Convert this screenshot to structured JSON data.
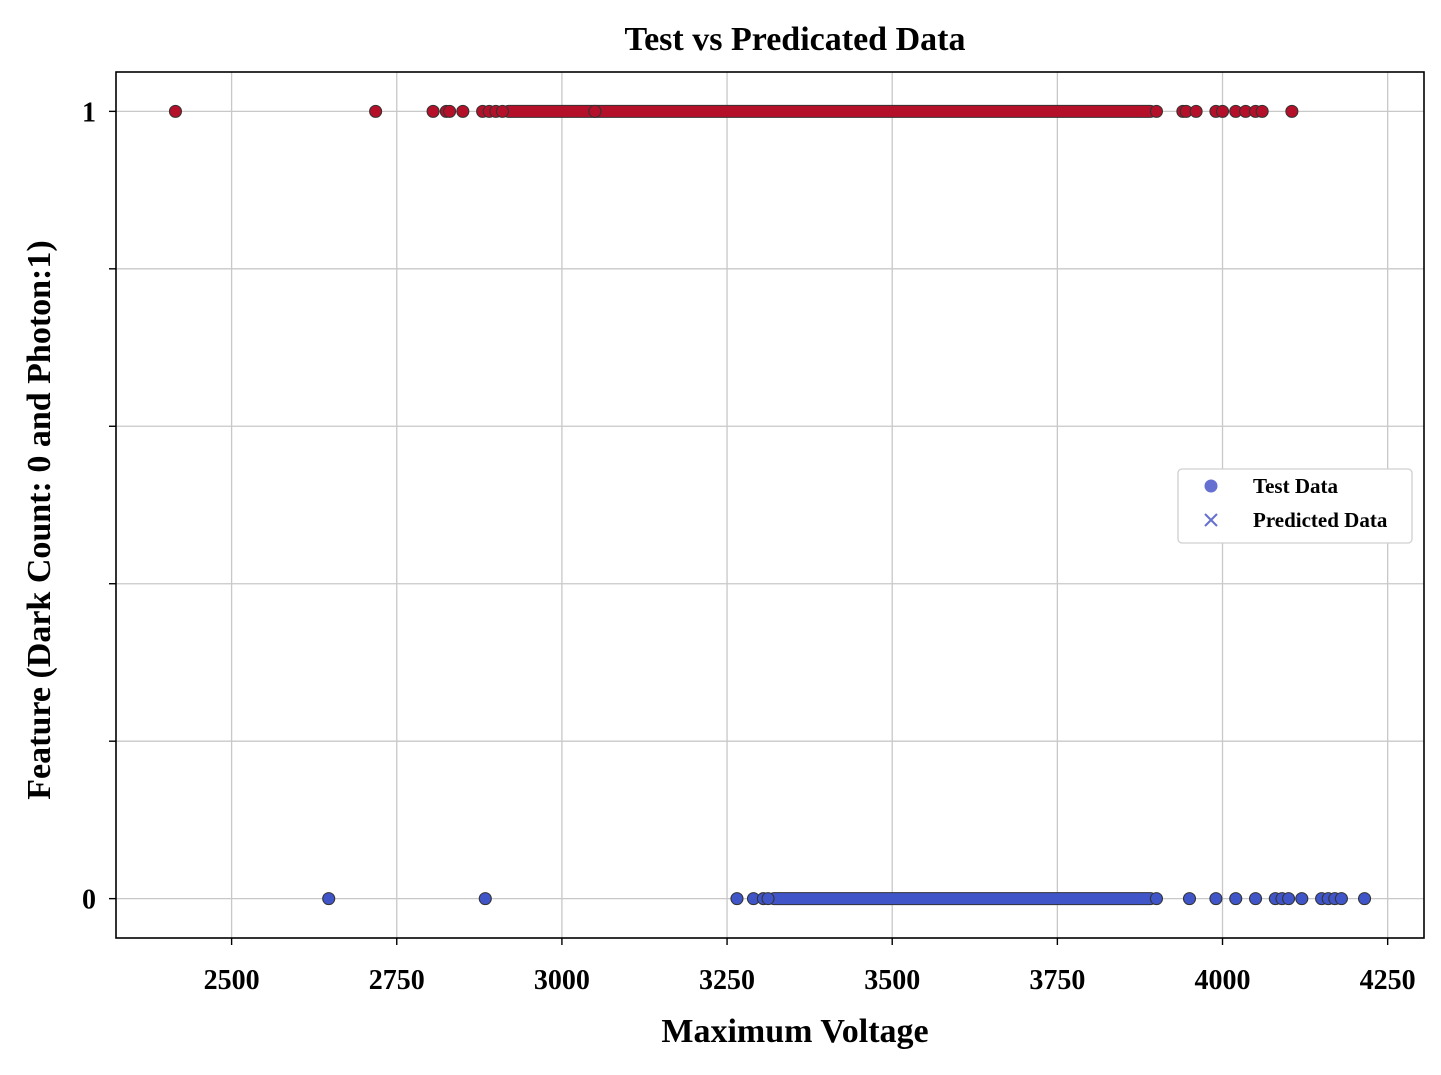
{
  "chart_data": {
    "type": "scatter",
    "title": "Test vs Predicated Data",
    "xlabel": "Maximum Voltage",
    "ylabel": "Feature (Dark Count: 0 and Photon:1)",
    "xlim": [
      2325,
      4305
    ],
    "ylim": [
      -0.05,
      1.05
    ],
    "xticks": [
      2500,
      2750,
      3000,
      3250,
      3500,
      3750,
      4000,
      4250
    ],
    "yticks": [
      0,
      0.2,
      0.4,
      0.6,
      0.8,
      1
    ],
    "ytick_labels": [
      "0",
      "",
      "",
      "",
      "",
      "1"
    ],
    "grid": true,
    "legend_position": "center-right",
    "legend": [
      {
        "label": "Test Data",
        "marker": "circle",
        "color": "#6670d0"
      },
      {
        "label": "Predicted Data",
        "marker": "x",
        "color": "#6670d0"
      }
    ],
    "colors": {
      "class_0": "#3f55c8",
      "class_1": "#b5102a"
    },
    "series": [
      {
        "name": "Test Data",
        "marker": "circle",
        "points_class_1": [
          2415,
          2718,
          2805,
          2825,
          2830,
          2850,
          2880,
          2890,
          2900,
          2910,
          3050,
          3900,
          3940,
          3945,
          3960,
          3990,
          4000,
          4020,
          4035,
          4050,
          4060,
          4105
        ],
        "points_class_0": [
          2647,
          2884,
          3265,
          3290,
          3305,
          3312,
          3900,
          3950,
          3990,
          4020,
          4050,
          4080,
          4090,
          4100,
          4120,
          4150,
          4160,
          4170,
          4180,
          4215
        ],
        "dense_ranges_class_1": [
          [
            2910,
            3900
          ]
        ],
        "dense_ranges_class_0": [
          [
            3312,
            3900
          ]
        ]
      },
      {
        "name": "Predicted Data",
        "marker": "x",
        "same_points_as": "Test Data"
      }
    ]
  }
}
